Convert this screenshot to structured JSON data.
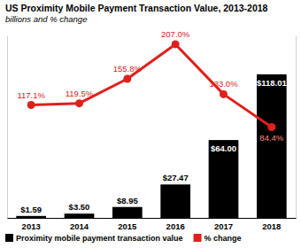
{
  "chart_data": {
    "type": "bar",
    "title": "US Proximity Mobile Payment Transaction Value, 2013-2018",
    "subtitle": "billions and % change",
    "categories": [
      "2013",
      "2014",
      "2015",
      "2016",
      "2017",
      "2018"
    ],
    "series": [
      {
        "name": "Proximity mobile payment transaction value",
        "type": "bar",
        "color": "#000000",
        "values": [
          1.59,
          3.5,
          8.95,
          27.47,
          64.0,
          118.01
        ],
        "value_labels": [
          "$1.59",
          "$3.50",
          "$8.95",
          "$27.47",
          "$64.00",
          "$118.01"
        ]
      },
      {
        "name": "% change",
        "type": "line",
        "axis": "y2",
        "color": "#e0201b",
        "marker": "circle",
        "values": [
          117.1,
          119.5,
          155.8,
          207.0,
          133.0,
          84.4
        ],
        "value_labels": [
          "117.1%",
          "119.5%",
          "155.8%",
          "207.0%",
          "133.0%",
          "84.4%"
        ]
      }
    ],
    "ylim": [
      0,
      150
    ],
    "y2lim": [
      -50,
      220
    ],
    "data_labels": true,
    "tick_labels": "x",
    "legend": "bottom",
    "grid": false
  }
}
